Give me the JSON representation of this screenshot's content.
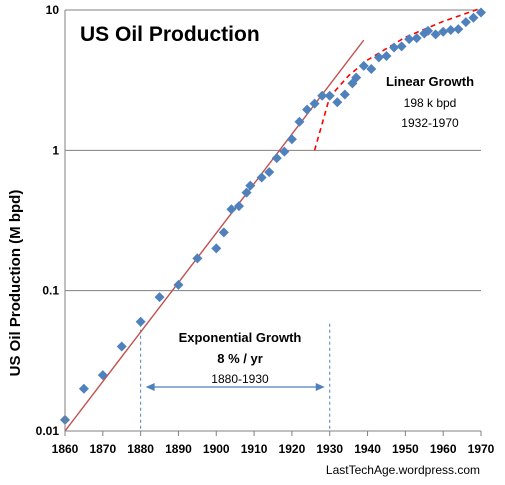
{
  "chart_data": {
    "type": "scatter",
    "title": "US Oil Production",
    "xlabel": "",
    "ylabel": "US Oil Production (M bpd)",
    "y_scale": "log",
    "xlim": [
      1860,
      1970
    ],
    "ylim": [
      0.01,
      10
    ],
    "x_ticks": [
      "1860",
      "1870",
      "1880",
      "1890",
      "1900",
      "1910",
      "1920",
      "1930",
      "1940",
      "1950",
      "1960",
      "1970"
    ],
    "y_ticks": [
      "0.01",
      "0.1",
      "1",
      "10"
    ],
    "grid": "horizontal",
    "colors": {
      "points": "#4F81BD",
      "exponential_fit": "#C0504D",
      "linear_fit": "#FF0000",
      "guides": "#4F81BD",
      "gridline": "#808080"
    },
    "series": [
      {
        "x": [
          1860,
          1865,
          1870,
          1875,
          1880,
          1885,
          1890,
          1895,
          1900,
          1902,
          1904,
          1906,
          1908,
          1909,
          1912,
          1914,
          1916,
          1918,
          1920,
          1922,
          1924,
          1926,
          1928,
          1930,
          1932,
          1934,
          1936,
          1937,
          1939,
          1941,
          1943,
          1945,
          1947,
          1949,
          1951,
          1953,
          1955,
          1956,
          1958,
          1960,
          1962,
          1964,
          1966,
          1968,
          1970
        ],
        "values": [
          0.012,
          0.02,
          0.025,
          0.04,
          0.06,
          0.09,
          0.11,
          0.17,
          0.2,
          0.26,
          0.38,
          0.4,
          0.5,
          0.56,
          0.64,
          0.7,
          0.88,
          0.98,
          1.2,
          1.6,
          1.95,
          2.15,
          2.45,
          2.45,
          2.2,
          2.5,
          3.0,
          3.3,
          4.0,
          3.8,
          4.6,
          4.7,
          5.4,
          5.5,
          6.2,
          6.3,
          6.8,
          7.1,
          6.7,
          7.0,
          7.2,
          7.3,
          8.2,
          8.8,
          9.6
        ]
      }
    ],
    "annotations": {
      "linear": {
        "title": "Linear Growth",
        "rate": "198 k bpd",
        "period": "1932-1970"
      },
      "exponential": {
        "title": "Exponential Growth",
        "rate": "8 % / yr",
        "period": "1880-1930"
      }
    },
    "exponential_fit": {
      "x0": 1860,
      "y0": 0.01,
      "x1": 1939,
      "y1": 6.1
    },
    "linear_fit": {
      "x": [
        1926,
        1930,
        1935,
        1940,
        1950,
        1960,
        1970
      ],
      "values": [
        1.0,
        2.4,
        3.4,
        4.4,
        6.4,
        8.3,
        10.3
      ]
    },
    "guide_years": [
      1880,
      1930
    ],
    "credit": "LastTechAge.wordpress.com"
  }
}
